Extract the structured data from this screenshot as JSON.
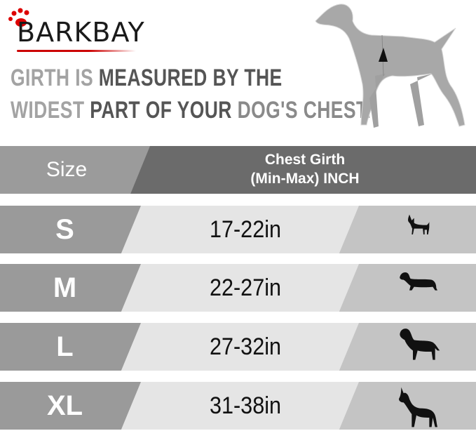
{
  "brand": {
    "name": "BARKBAY",
    "accent_color": "#cc0000"
  },
  "headline": {
    "line1": [
      {
        "text": "GIRTH IS ",
        "tone": "light"
      },
      {
        "text": "MEASURED BY THE",
        "tone": "dark"
      }
    ],
    "line2": [
      {
        "text": "WIDEST ",
        "tone": "light"
      },
      {
        "text": "PART OF YOUR ",
        "tone": "dark"
      },
      {
        "text": "DOG'S CHEST.",
        "tone": "light"
      }
    ]
  },
  "table": {
    "header": {
      "size": "Size",
      "girth_line1": "Chest Girth",
      "girth_line2": "(Min-Max)  INCH"
    },
    "rows": [
      {
        "size": "S",
        "girth": "17-22in",
        "icon": "chihuahua-silhouette-icon"
      },
      {
        "size": "M",
        "girth": "22-27in",
        "icon": "dachshund-silhouette-icon"
      },
      {
        "size": "L",
        "girth": "27-32in",
        "icon": "labrador-silhouette-icon"
      },
      {
        "size": "XL",
        "girth": "31-38in",
        "icon": "great-dane-silhouette-icon"
      }
    ]
  },
  "colors": {
    "size_col": "#9a9a9a",
    "girth_col": "#e5e5e5",
    "icon_col": "#c4c4c4",
    "header_dark": "#6b6b6b"
  }
}
